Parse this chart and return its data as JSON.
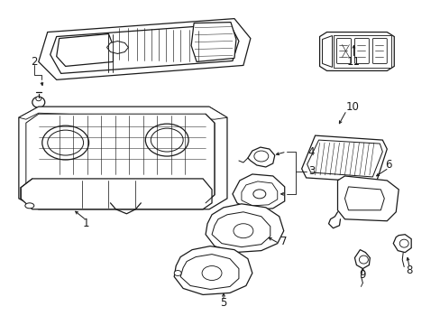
{
  "bg_color": "#ffffff",
  "line_color": "#1a1a1a",
  "fig_width": 4.89,
  "fig_height": 3.6,
  "dpi": 100,
  "label_fontsize": 8.5,
  "lw": 0.9
}
